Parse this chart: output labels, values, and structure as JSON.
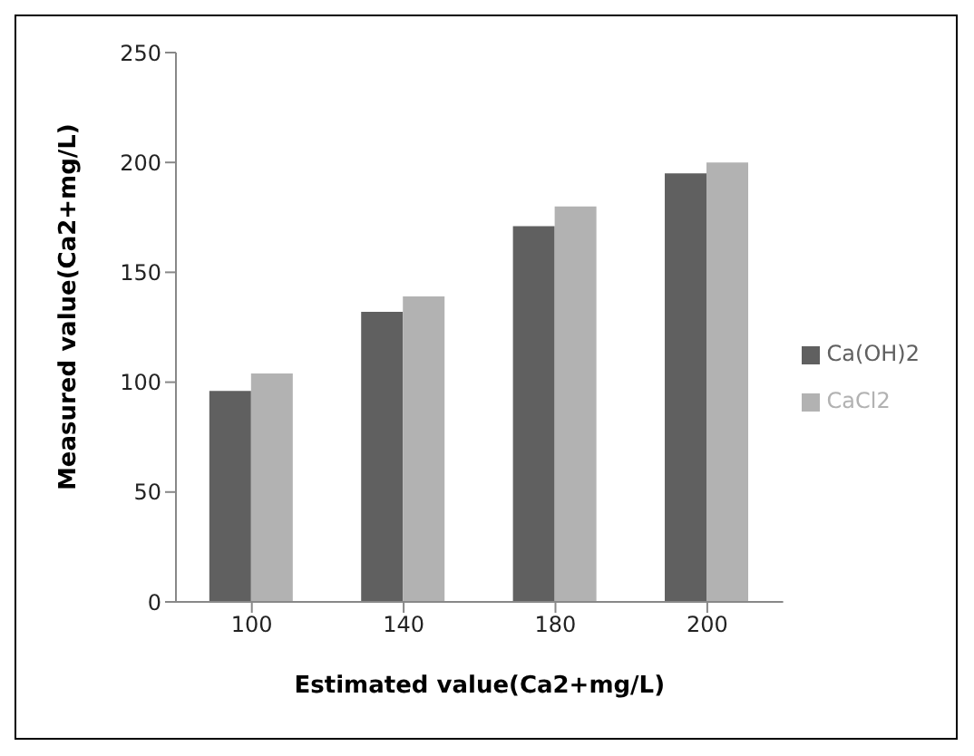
{
  "chart_data": {
    "type": "bar",
    "xlabel": "Estimated value(Ca2+mg/L)",
    "ylabel": "Measured value(Ca2+mg/L)",
    "categories": [
      "100",
      "140",
      "180",
      "200"
    ],
    "series": [
      {
        "name": "Ca(OH)2",
        "color": "#606060",
        "values": [
          96,
          132,
          171,
          195
        ]
      },
      {
        "name": "CaCl2",
        "color": "#b2b2b2",
        "values": [
          104,
          139,
          180,
          200
        ]
      }
    ],
    "ylim": [
      0,
      250
    ],
    "yticks": [
      0,
      50,
      100,
      150,
      200,
      250
    ],
    "grid": false,
    "legend": "right"
  }
}
